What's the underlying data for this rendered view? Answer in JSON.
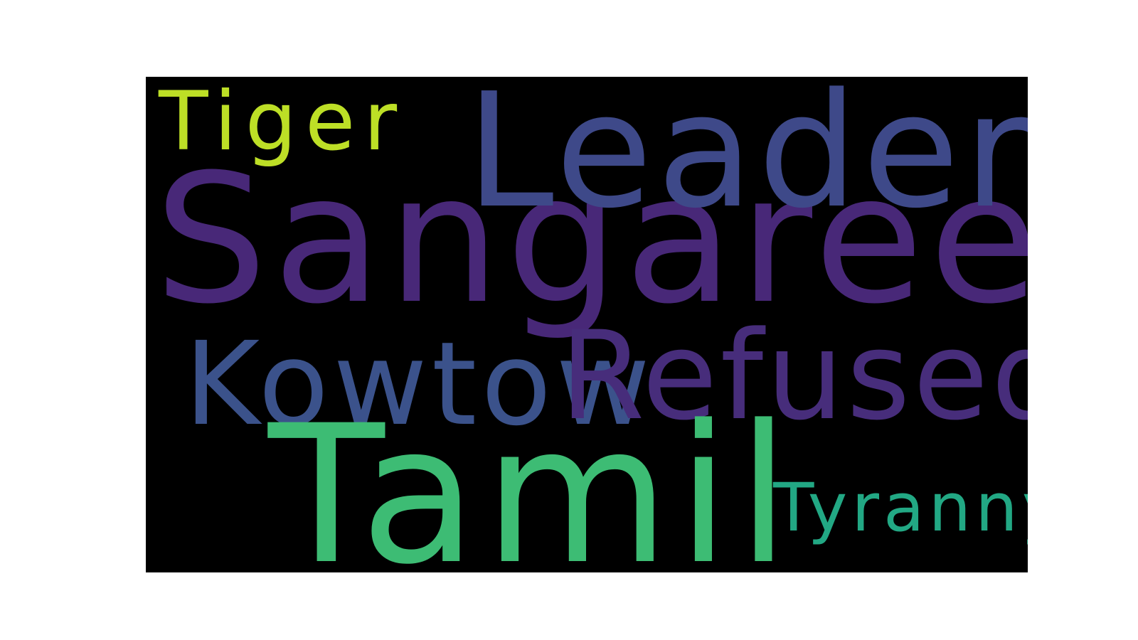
{
  "background_color": "#000000",
  "words": [
    {
      "text": "Sangaree",
      "color": "#482878"
    },
    {
      "text": "Leader",
      "color": "#3e4989"
    },
    {
      "text": "Tiger",
      "color": "#bddf26"
    },
    {
      "text": "Kowtow",
      "color": "#3b528b"
    },
    {
      "text": "Refused",
      "color": "#472d7b"
    },
    {
      "text": "Tamil",
      "color": "#3dbc74"
    },
    {
      "text": "Tyranny",
      "color": "#22a884"
    }
  ]
}
